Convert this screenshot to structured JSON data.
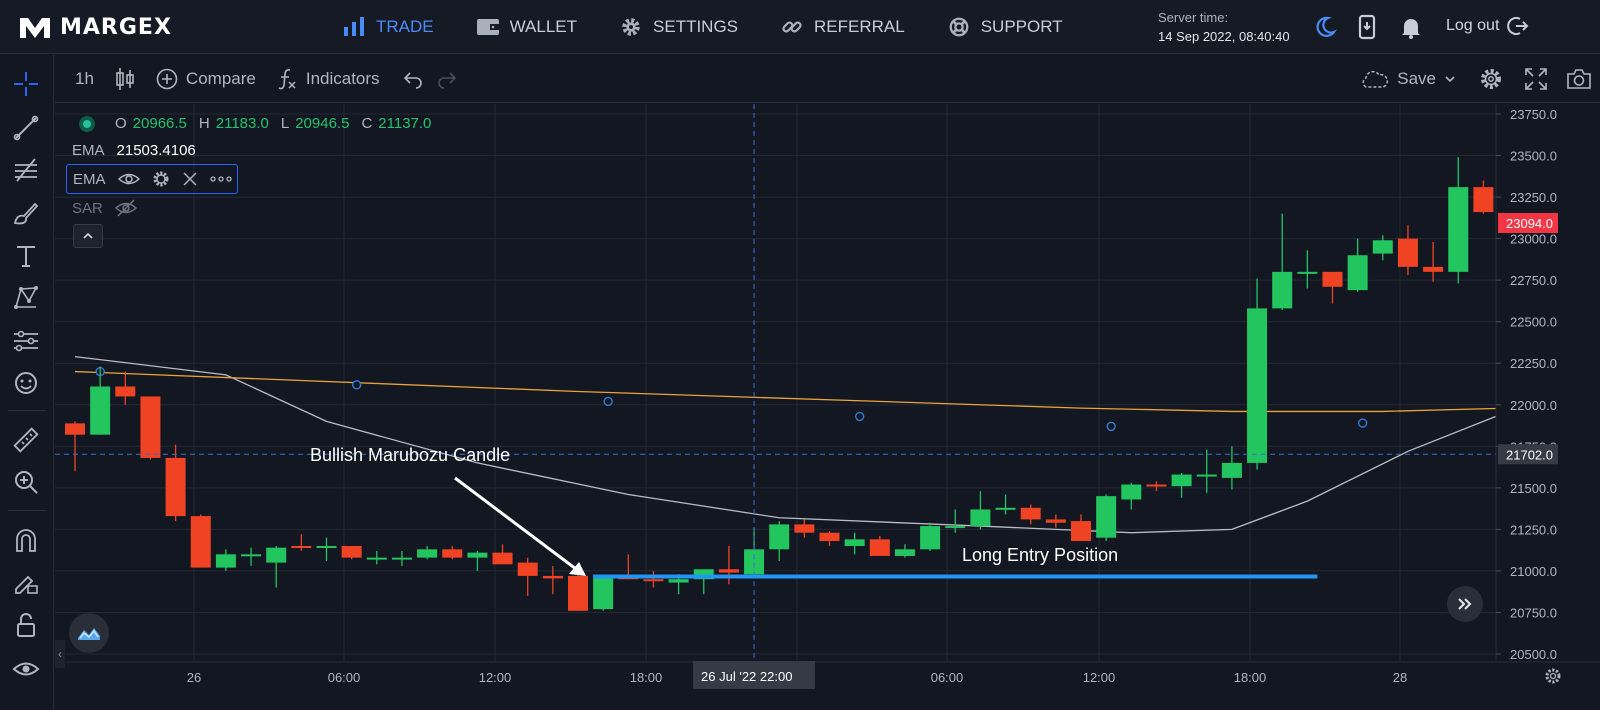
{
  "header": {
    "brand": "MARGEX",
    "nav": [
      {
        "label": "TRADE",
        "icon": "chart-bars-icon",
        "active": true
      },
      {
        "label": "WALLET",
        "icon": "wallet-icon",
        "active": false
      },
      {
        "label": "SETTINGS",
        "icon": "gear-icon",
        "active": false
      },
      {
        "label": "REFERRAL",
        "icon": "link-icon",
        "active": false
      },
      {
        "label": "SUPPORT",
        "icon": "lifebuoy-icon",
        "active": false
      }
    ],
    "server_time_label": "Server time:",
    "server_time_value": "14 Sep 2022, 08:40:40",
    "logout_label": "Log out"
  },
  "toolbar": {
    "interval": "1h",
    "compare_label": "Compare",
    "indicators_label": "Indicators",
    "save_label": "Save"
  },
  "legend": {
    "ohlc": {
      "O": "20966.5",
      "H": "21183.0",
      "L": "20946.5",
      "C": "21137.0"
    },
    "ema_label": "EMA",
    "ema_value": "21503.4106",
    "ema_box_label": "EMA",
    "sar_label": "SAR"
  },
  "annotations": {
    "bullish": "Bullish Marubozu Candle",
    "long_entry": "Long Entry Position"
  },
  "chart_data": {
    "type": "candlestick",
    "price_axis": [
      "23750.0",
      "23500.0",
      "23250.0",
      "23000.0",
      "22750.0",
      "22500.0",
      "22250.0",
      "22000.0",
      "21750.0",
      "21500.0",
      "21250.0",
      "21000.0",
      "20750.0",
      "20500.0"
    ],
    "time_axis": [
      "26",
      "06:00",
      "12:00",
      "18:00",
      "06:00",
      "12:00",
      "18:00",
      "28"
    ],
    "crosshair_time": "26 Jul '22",
    "crosshair_time2": "22:00",
    "current_price": "23094.0",
    "crosshair_price": "21702.0",
    "long_entry_price": 20966.5,
    "colors": {
      "up": "#22c55e",
      "down": "#ef4323",
      "ema": "#e8a33d",
      "sar": "#b8bcc6",
      "entry": "#2196f3"
    },
    "candles": [
      [
        21888,
        21900,
        21600,
        21820
      ],
      [
        21820,
        22230,
        21820,
        22110
      ],
      [
        22110,
        22200,
        22000,
        22050
      ],
      [
        22050,
        22050,
        21670,
        21680
      ],
      [
        21680,
        21760,
        21300,
        21330
      ],
      [
        21330,
        21340,
        21020,
        21020
      ],
      [
        21020,
        21130,
        21000,
        21100
      ],
      [
        21100,
        21140,
        21030,
        21100
      ],
      [
        21050,
        21150,
        20900,
        21140
      ],
      [
        21150,
        21220,
        21120,
        21140
      ],
      [
        21140,
        21200,
        21060,
        21150
      ],
      [
        21150,
        21150,
        21070,
        21080
      ],
      [
        21080,
        21120,
        21040,
        21080
      ],
      [
        21070,
        21120,
        21030,
        21080
      ],
      [
        21080,
        21150,
        21070,
        21130
      ],
      [
        21130,
        21150,
        21070,
        21080
      ],
      [
        21080,
        21120,
        21000,
        21110
      ],
      [
        21110,
        21160,
        21060,
        21040
      ],
      [
        21050,
        21080,
        20850,
        20970
      ],
      [
        20970,
        21030,
        20860,
        20955
      ],
      [
        20970,
        20990,
        20760,
        20760
      ],
      [
        20770,
        20970,
        20760,
        20966.5
      ],
      [
        20966.5,
        21100,
        20950,
        20950
      ],
      [
        20950,
        21000,
        20900,
        20940
      ],
      [
        20930,
        20980,
        20860,
        20950
      ],
      [
        20950,
        21010,
        20860,
        21010
      ],
      [
        21010,
        21150,
        20920,
        20990
      ],
      [
        20980,
        21260,
        20960,
        21130
      ],
      [
        21130,
        21300,
        21060,
        21280
      ],
      [
        21280,
        21310,
        21200,
        21230
      ],
      [
        21230,
        21240,
        21150,
        21180
      ],
      [
        21150,
        21230,
        21100,
        21190
      ],
      [
        21190,
        21210,
        21100,
        21090
      ],
      [
        21090,
        21160,
        21080,
        21130
      ],
      [
        21130,
        21290,
        21120,
        21270
      ],
      [
        21260,
        21370,
        21230,
        21270
      ],
      [
        21270,
        21480,
        21250,
        21370
      ],
      [
        21370,
        21460,
        21340,
        21380
      ],
      [
        21380,
        21400,
        21280,
        21310
      ],
      [
        21310,
        21340,
        21260,
        21290
      ],
      [
        21300,
        21340,
        21180,
        21180
      ],
      [
        21200,
        21460,
        21180,
        21450
      ],
      [
        21430,
        21530,
        21370,
        21520
      ],
      [
        21520,
        21540,
        21480,
        21510
      ],
      [
        21510,
        21590,
        21440,
        21580
      ],
      [
        21580,
        21730,
        21470,
        21580
      ],
      [
        21560,
        21750,
        21490,
        21650
      ],
      [
        21650,
        22760,
        21610,
        22580
      ],
      [
        22580,
        23150,
        22570,
        22800
      ],
      [
        22800,
        22930,
        22700,
        22800
      ],
      [
        22800,
        22800,
        22610,
        22710
      ],
      [
        22690,
        23000,
        22680,
        22900
      ],
      [
        22910,
        23020,
        22870,
        22990
      ],
      [
        23000,
        23080,
        22780,
        22830
      ],
      [
        22830,
        22980,
        22740,
        22800
      ],
      [
        22800,
        23490,
        22730,
        23310
      ],
      [
        23310,
        23350,
        23150,
        23160
      ],
      [
        23160,
        23190,
        23080,
        23094
      ]
    ],
    "ema_line": [
      [
        0,
        22200
      ],
      [
        20,
        22080
      ],
      [
        40,
        21980
      ],
      [
        46,
        21960
      ],
      [
        52,
        21960
      ],
      [
        57,
        21980
      ]
    ],
    "sar_line": [
      [
        0,
        22290
      ],
      [
        6,
        22180
      ],
      [
        10,
        21900
      ],
      [
        16,
        21650
      ],
      [
        22,
        21460
      ],
      [
        28,
        21320
      ],
      [
        36,
        21270
      ],
      [
        42,
        21230
      ],
      [
        46,
        21250
      ],
      [
        49,
        21420
      ],
      [
        53,
        21720
      ],
      [
        57,
        21960
      ]
    ],
    "ema_markers": [
      [
        1,
        22200
      ],
      [
        11.2,
        22120
      ],
      [
        21.2,
        22020
      ],
      [
        31.2,
        21930
      ],
      [
        41.2,
        21870
      ],
      [
        51.2,
        21890
      ]
    ]
  }
}
